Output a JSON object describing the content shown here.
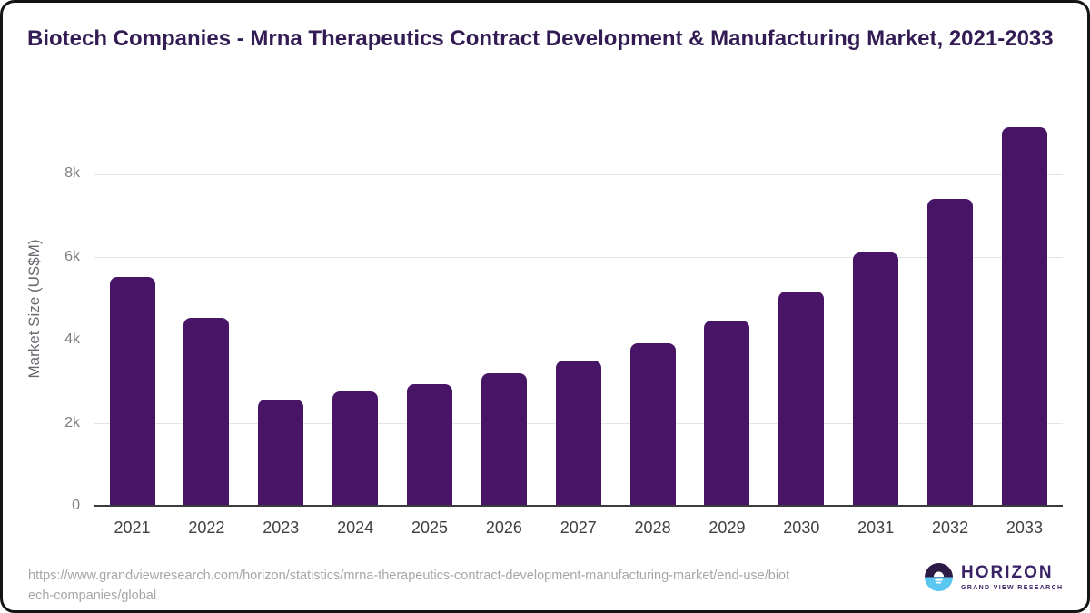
{
  "header": {
    "title": "Biotech Companies - Mrna Therapeutics Contract Development & Manufacturing Market, 2021-2033"
  },
  "chart_data": {
    "type": "bar",
    "title": "Biotech Companies - Mrna Therapeutics Contract Development & Manufacturing Market, 2021-2033",
    "categories": [
      "2021",
      "2022",
      "2023",
      "2024",
      "2025",
      "2026",
      "2027",
      "2028",
      "2029",
      "2030",
      "2031",
      "2032",
      "2033"
    ],
    "values": [
      5520,
      4550,
      2580,
      2770,
      2950,
      3220,
      3530,
      3930,
      4490,
      5170,
      6130,
      7400,
      9130
    ],
    "xlabel": "",
    "ylabel": "Market Size (US$M)",
    "ylim": [
      0,
      9500
    ],
    "yticks": [
      {
        "value": 0,
        "label": "0"
      },
      {
        "value": 2000,
        "label": "2k"
      },
      {
        "value": 4000,
        "label": "4k"
      },
      {
        "value": 6000,
        "label": "6k"
      },
      {
        "value": 8000,
        "label": "8k"
      }
    ],
    "grid": true,
    "legend": "none",
    "bar_color": "#481566"
  },
  "footer": {
    "source_url_lines": [
      "https://www.grandviewresearch.com/horizon/statistics/mrna-therapeutics-contract-development-manufacturing-market/end-use/biot",
      "ech-companies/global"
    ],
    "logo": {
      "brand": "HORIZON",
      "subtitle": "GRAND VIEW RESEARCH"
    }
  },
  "colors": {
    "bar": "#481566",
    "title_text": "#331c54",
    "grid_line": "#e5e5e5",
    "axis_line": "#3a3b3d",
    "tick_text": "#7d7d7d",
    "year_text": "#3e4144",
    "url_text": "#a6a6a6",
    "logo_dark": "#2e1a47",
    "logo_blue": "#5bc6f0",
    "logo_text": "#3b2165"
  }
}
